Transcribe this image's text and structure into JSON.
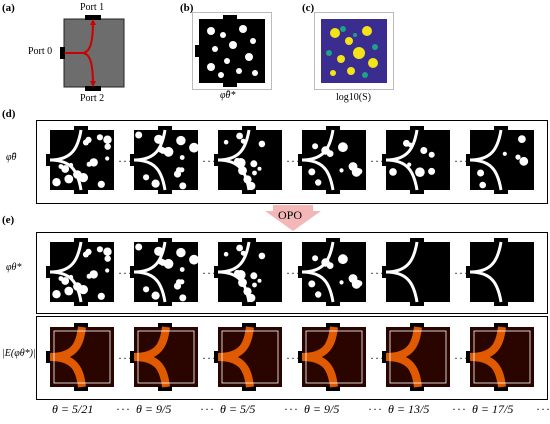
{
  "panels": {
    "a": {
      "label": "(a)",
      "port1": "Port 1",
      "port0": "Port 0",
      "port2": "Port 2"
    },
    "b": {
      "label": "(b)",
      "symbol": "φ̂θ*"
    },
    "c": {
      "label": "(c)",
      "symbol": "log10(S)"
    },
    "d": {
      "label": "(d)",
      "row_symbol": "φ̃θ"
    },
    "e": {
      "label": "(e)",
      "arrow_label": "OPO",
      "row1_symbol": "φθ*",
      "row2_symbol": "|E(φθ*)|"
    }
  },
  "thetas": [
    "θ = 5/21",
    "θ = 9/5",
    "θ = 5/5",
    "θ = 9/5",
    "θ = 13/5",
    "θ = 17/5"
  ],
  "ellipsis": "···",
  "colors": {
    "topology_black": "#000000",
    "topology_white": "#ffffff",
    "field_dark": "#2a0500",
    "field_hot": "#ff6a00",
    "waveguide_red": "#cc0000",
    "arrow_fill": "#f4b7b7",
    "heatmap_blue": "#3b2d8f",
    "heatmap_yellow": "#f2e417"
  }
}
